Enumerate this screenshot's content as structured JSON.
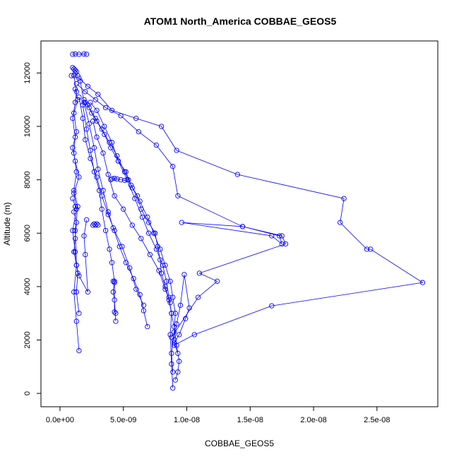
{
  "chart_data": {
    "type": "line",
    "title": "ATOM1 North_America COBBAE_GEOS5",
    "xlabel": "COBBAE_GEOS5",
    "ylabel": "Altitude (m)",
    "xlim": [
      -1.5e-09,
      2.98e-08
    ],
    "ylim": [
      -500,
      13200
    ],
    "x_ticks": [
      0,
      5e-09,
      1e-08,
      1.5e-08,
      2e-08,
      2.5e-08
    ],
    "x_tick_labels": [
      "0.0e+00",
      "5.0e-09",
      "1.0e-08",
      "1.5e-08",
      "2.0e-08",
      "2.5e-08"
    ],
    "y_ticks": [
      0,
      2000,
      4000,
      6000,
      8000,
      10000,
      12000
    ],
    "y_tick_labels": [
      "0",
      "2000",
      "4000",
      "6000",
      "8000",
      "10000",
      "12000"
    ],
    "grid": false,
    "color": "#0000ff",
    "series": [
      {
        "x": [
          1e-09,
          1.2e-09,
          1.5e-09,
          1.9e-09,
          2.1e-09
        ],
        "y": [
          12700,
          12710,
          12700,
          12710,
          12700
        ]
      },
      {
        "x": [
          1e-09,
          1.1e-09,
          1.2e-09,
          1.3e-09,
          1.2e-09,
          1.4e-09
        ],
        "y": [
          12200,
          12150,
          12100,
          12050,
          12000,
          11900
        ]
      },
      {
        "x": [
          9e-10,
          1.5e-09,
          2.2e-09,
          3e-09,
          4.1e-09,
          6e-09,
          8e-09,
          9.2e-09,
          1.4e-08,
          2.24e-08,
          2.21e-08,
          2.42e-08,
          2.45e-08,
          2.86e-08,
          1.67e-08,
          1.06e-08,
          9e-09
        ],
        "y": [
          11900,
          11800,
          11500,
          11200,
          10600,
          10300,
          10000,
          9100,
          8200,
          7300,
          6400,
          5400,
          5400,
          4150,
          3280,
          2200,
          1800
        ]
      },
      {
        "x": [
          1.3e-09,
          2e-09,
          2.8e-09,
          3.6e-09,
          4.8e-09,
          6.2e-09,
          7.6e-09,
          8.9e-09,
          9.3e-09,
          1.44e-08,
          1.73e-08,
          1.75e-08,
          1.67e-08,
          9.6e-09,
          1.44e-08,
          1.75e-08,
          1.78e-08,
          1.1e-08,
          1.24e-08,
          1.09e-08,
          8.8e-09
        ],
        "y": [
          11600,
          11300,
          11000,
          10700,
          10400,
          9800,
          9300,
          8500,
          7400,
          6250,
          5900,
          5600,
          5900,
          6400,
          6250,
          5900,
          5600,
          4500,
          4200,
          3600,
          2100
        ]
      },
      {
        "x": [
          1.2e-09,
          1.4e-09,
          1.1e-09,
          1.3e-09,
          1e-09,
          1.2e-09,
          1.5e-09,
          1.1e-09,
          1.3e-09,
          1e-09,
          1.2e-09,
          1.4e-09,
          1.3e-09,
          1.5e-09
        ],
        "y": [
          11400,
          11000,
          10500,
          9800,
          9200,
          8700,
          8100,
          7500,
          6900,
          6100,
          5300,
          4500,
          3800,
          3000
        ]
      },
      {
        "x": [
          1.1e-09,
          1.3e-09,
          1.2e-09,
          1e-09,
          1.2e-09,
          1.1e-09,
          1.3e-09,
          1.1e-09,
          1.4e-09,
          1.2e-09,
          1.3e-09,
          1.1e-09,
          1.3e-09,
          1.5e-09
        ],
        "y": [
          11900,
          11300,
          10900,
          10300,
          9600,
          9000,
          8300,
          7600,
          7000,
          6100,
          4800,
          3800,
          2700,
          1600
        ]
      },
      {
        "x": [
          1.9e-09,
          2.2e-09,
          2.5e-09,
          2.9e-09,
          3.5e-09,
          4e-09,
          4.6e-09,
          5.2e-09,
          5.6e-09,
          6.1e-09,
          6.4e-09,
          7e-09,
          7.5e-09,
          7.7e-09,
          7.9e-09,
          8e-09,
          8.3e-09,
          8.6e-09,
          8.8e-09,
          9e-09,
          9.2e-09,
          9.4e-09,
          9.3e-09,
          9.1e-09
        ],
        "y": [
          11000,
          10800,
          10500,
          10200,
          9700,
          9200,
          8700,
          8300,
          7800,
          7400,
          6900,
          6400,
          6000,
          5500,
          5000,
          4500,
          4000,
          3500,
          3000,
          2500,
          1800,
          1200,
          800,
          500
        ]
      },
      {
        "x": [
          2e-09,
          2.3e-09,
          2.8e-09,
          3.3e-09,
          3.9e-09,
          4.5e-09,
          5.1e-09,
          5.7e-09,
          6.3e-09,
          6.9e-09,
          7.4e-09,
          7.9e-09,
          8.3e-09,
          8.7e-09,
          8.9e-09,
          9.1e-09,
          9e-09,
          8.8e-09,
          8.9e-09
        ],
        "y": [
          10900,
          10700,
          10300,
          9900,
          9400,
          8900,
          8300,
          7700,
          7200,
          6600,
          6000,
          5400,
          4800,
          4200,
          3600,
          3000,
          2300,
          1500,
          800
        ]
      },
      {
        "x": [
          2.4e-09,
          2.9e-09,
          3.5e-09,
          4.1e-09,
          4.6e-09,
          5.3e-09,
          5.9e-09,
          6.5e-09,
          7e-09,
          7.6e-09,
          8.1e-09,
          8.4e-09,
          8.6e-09,
          8.8e-09,
          8.7e-09,
          8.8e-09,
          8.9e-09
        ],
        "y": [
          10900,
          10600,
          10000,
          9400,
          8700,
          8000,
          7300,
          6600,
          6000,
          5400,
          4800,
          4200,
          3600,
          3000,
          2200,
          1100,
          200
        ]
      },
      {
        "x": [
          1.6e-09,
          1.9e-09,
          2.3e-09,
          2.7e-09,
          3e-09,
          3.4e-09,
          3.8e-09,
          4.2e-09,
          4.7e-09,
          5.2e-09,
          5.8e-09,
          6.3e-09,
          6.6e-09,
          6.9e-09
        ],
        "y": [
          11700,
          10900,
          10100,
          9200,
          8400,
          7600,
          6800,
          6200,
          5500,
          4900,
          4300,
          3700,
          3100,
          2500
        ]
      },
      {
        "x": [
          1.5e-09,
          1.8e-09,
          2e-09,
          2.4e-09,
          2.9e-09,
          3.3e-09,
          3.8e-09,
          4.3e-09,
          4.9e-09,
          5.5e-09,
          6e-09,
          6.6e-09
        ],
        "y": [
          11100,
          10300,
          9500,
          8800,
          8100,
          7400,
          6700,
          6100,
          5500,
          4700,
          3900,
          3300
        ]
      },
      {
        "x": [
          1.8e-09,
          2.1e-09,
          2.4e-09,
          2.7e-09,
          3.1e-09,
          3.3e-09,
          3.6e-09,
          3.9e-09,
          4.1e-09,
          4.3e-09,
          4.2e-09,
          4.3e-09,
          4.4e-09
        ],
        "y": [
          10800,
          9900,
          9100,
          8300,
          7600,
          6900,
          6100,
          5400,
          4900,
          4200,
          3800,
          3500,
          2700
        ]
      },
      {
        "x": [
          4e-09,
          4.1e-09,
          4.3e-09,
          4.5e-09,
          4.8e-09,
          5.1e-09,
          5.4e-09
        ],
        "y": [
          8000,
          8040,
          8050,
          8030,
          8000,
          7980,
          8000
        ]
      },
      {
        "x": [
          2.6e-09,
          2.7e-09,
          2.8e-09,
          2.9e-09,
          3e-09
        ],
        "y": [
          6300,
          6350,
          6300,
          6350,
          6300
        ]
      },
      {
        "x": [
          4.2e-09,
          4.3e-09,
          4.3e-09,
          4.4e-09
        ],
        "y": [
          4200,
          4150,
          3050,
          3000
        ]
      },
      {
        "x": [
          9e-09,
          9.2e-09,
          9.5e-09,
          9.8e-09,
          1.02e-08,
          9.9e-09,
          9.4e-09,
          9e-09,
          9.3e-09
        ],
        "y": [
          2000,
          2600,
          3300,
          4450,
          3200,
          2800,
          2200,
          1900,
          1500
        ]
      },
      {
        "x": [
          1e-09,
          1.2e-09,
          1.1e-09,
          1.3e-09,
          1.2e-09,
          1.1e-09,
          1.3e-09,
          1.5e-09,
          2.2e-09,
          2e-09,
          1.9e-09,
          2.1e-09
        ],
        "y": [
          7300,
          7000,
          6800,
          6400,
          5800,
          5300,
          4800,
          4400,
          3800,
          5200,
          5900,
          6500
        ]
      },
      {
        "x": [
          2.6e-09,
          2.9e-09,
          3.4e-09,
          3.8e-09,
          4.3e-09,
          5e-09,
          5.7e-09,
          6.4e-09,
          7.1e-09,
          7.8e-09,
          8.3e-09,
          8.7e-09
        ],
        "y": [
          10200,
          9600,
          9000,
          8200,
          7400,
          6900,
          6300,
          5800,
          5200,
          4600,
          3900,
          3400
        ]
      }
    ]
  }
}
